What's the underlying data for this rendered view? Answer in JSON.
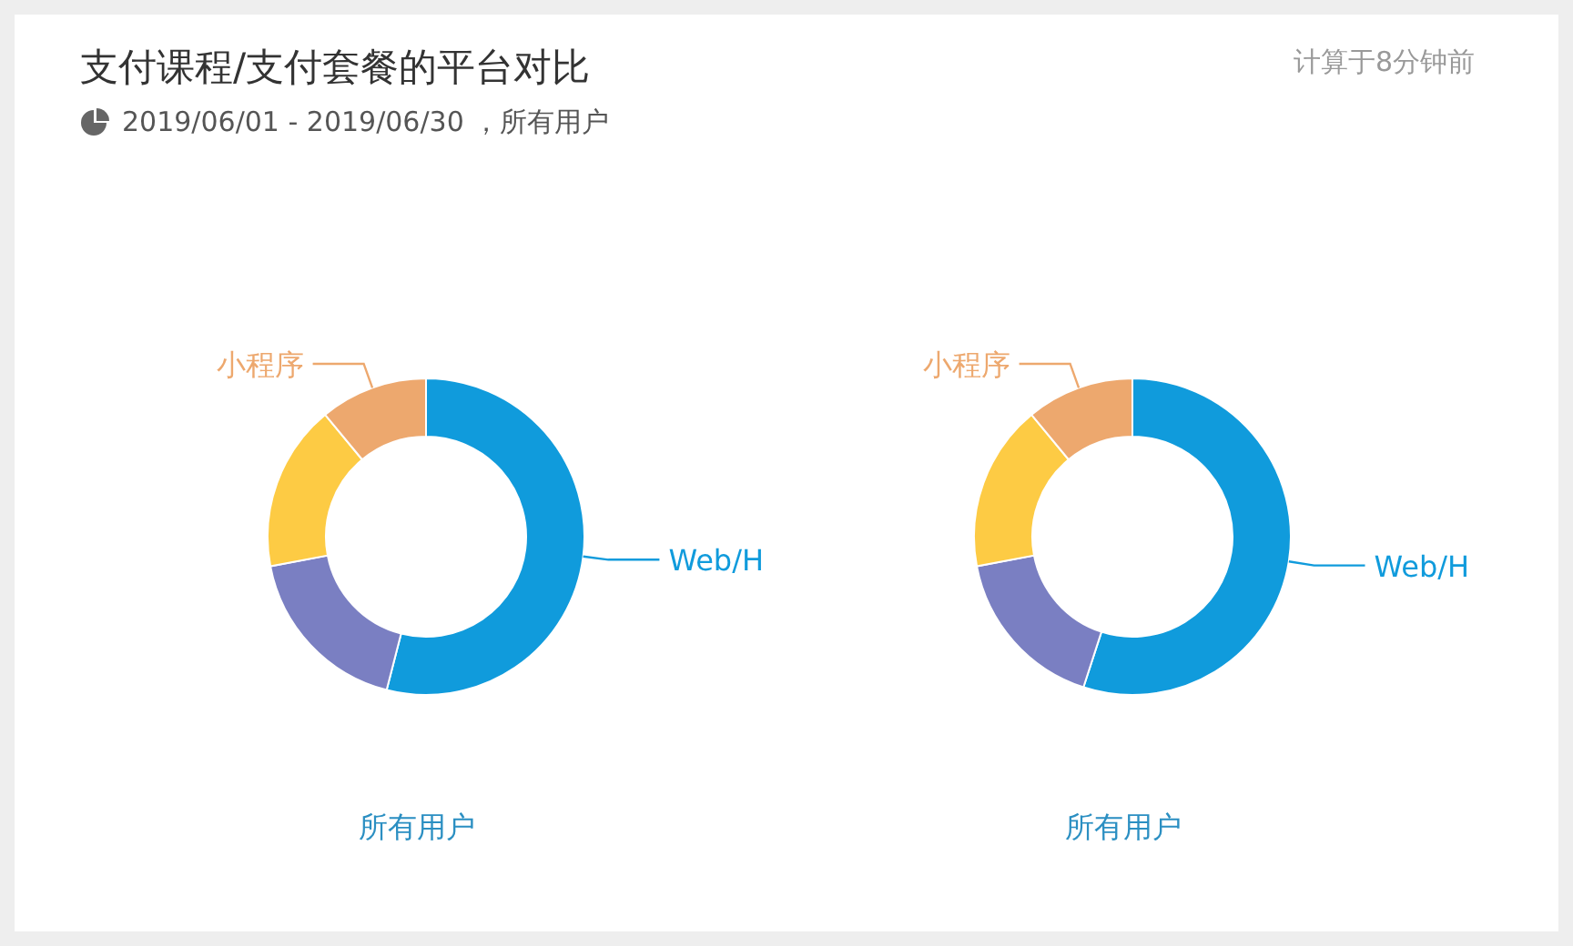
{
  "chart_data": [
    {
      "type": "donut",
      "title": "支付课程/支付套餐的平台对比",
      "subtitle": "2019/06/01 - 2019/06/30 ，所有用户",
      "annotations": [
        "计算于8分钟前"
      ],
      "xlabel": "所有用户",
      "categories": [
        "Web/H",
        null,
        null,
        "小程序"
      ],
      "values": [
        54,
        18,
        17,
        11
      ],
      "colors": [
        "#109bdc",
        "#7a7fc2",
        "#fdcb44",
        "#eda86e"
      ]
    },
    {
      "type": "donut",
      "xlabel": "所有用户",
      "categories": [
        "Web/H",
        null,
        null,
        "小程序"
      ],
      "values": [
        55,
        17,
        17,
        11
      ],
      "colors": [
        "#109bdc",
        "#7a7fc2",
        "#fdcb44",
        "#eda86e"
      ]
    }
  ]
}
